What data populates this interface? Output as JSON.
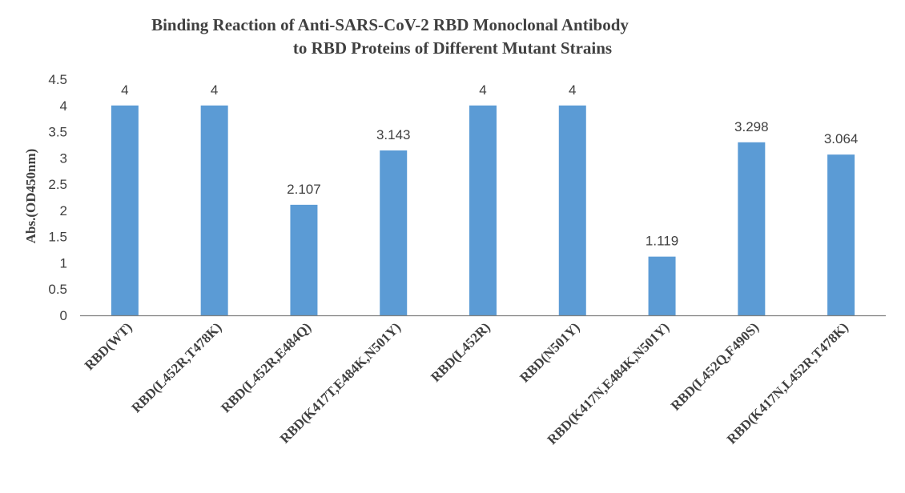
{
  "chart_data": {
    "type": "bar",
    "title_lines": [
      "Binding Reaction of Anti-SARS-CoV-2 RBD Monoclonal Antibody",
      "to RBD Proteins of Different Mutant Strains"
    ],
    "xlabel": "",
    "ylabel": "Abs.(OD450nm)",
    "ylim": [
      0,
      4.5
    ],
    "yticks": [
      "0",
      "0.5",
      "1",
      "1.5",
      "2",
      "2.5",
      "3",
      "3.5",
      "4",
      "4.5"
    ],
    "grid": false,
    "bar_color": "#5B9BD5",
    "categories": [
      "RBD(WT)",
      "RBD(L452R,T478K)",
      "RBD(L452R,E484Q)",
      "RBD(K417T,E484K,N501Y)",
      "RBD(L452R)",
      "RBD(N501Y)",
      "RBD(K417N,E484K,N501Y)",
      "RBD(L452Q,F490S)",
      "RBD(K417N,L452R,T478K)"
    ],
    "values": [
      4,
      4,
      2.107,
      3.143,
      4,
      4,
      1.119,
      3.298,
      3.064
    ],
    "data_labels": [
      "4",
      "4",
      "2.107",
      "3.143",
      "4",
      "4",
      "1.119",
      "3.298",
      "3.064"
    ]
  }
}
